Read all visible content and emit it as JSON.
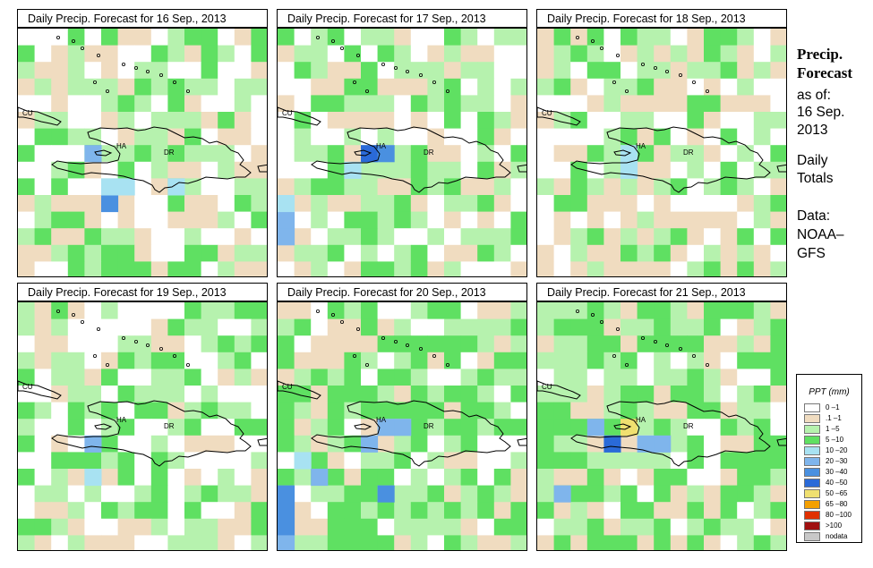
{
  "panels": [
    {
      "title": "Daily Precip. Forecast for  16 Sep., 2013",
      "seed": 16,
      "hot": [
        [
          5,
          10,
          "#4a90e0"
        ],
        [
          6,
          9,
          "#a8e2f2"
        ],
        [
          4,
          7,
          "#7fb5ec"
        ],
        [
          9,
          9,
          "#a8e2f2"
        ],
        [
          5,
          9,
          "#a8e2f2"
        ]
      ]
    },
    {
      "title": "Daily Precip. Forecast for  17 Sep., 2013",
      "seed": 17,
      "hot": [
        [
          5,
          7,
          "#2a6ad8"
        ],
        [
          6,
          7,
          "#4a90e0"
        ],
        [
          0,
          11,
          "#7fb5ec"
        ],
        [
          0,
          12,
          "#7fb5ec"
        ],
        [
          0,
          10,
          "#a8e2f2"
        ],
        [
          4,
          8,
          "#a8e2f2"
        ]
      ]
    },
    {
      "title": "Daily Precip. Forecast for  18 Sep., 2013",
      "seed": 18,
      "hot": [
        [
          5,
          8,
          "#a8e2f2"
        ],
        [
          5,
          7,
          "#a8e2f2"
        ]
      ]
    },
    {
      "title": "Daily Precip. Forecast for  19 Sep., 2013",
      "seed": 19,
      "hot": [
        [
          4,
          8,
          "#7fb5ec"
        ],
        [
          4,
          10,
          "#a8e2f2"
        ]
      ]
    },
    {
      "title": "Daily Precip. Forecast for  20 Sep., 2013",
      "seed": 20,
      "hot": [
        [
          6,
          11,
          "#4a90e0"
        ],
        [
          0,
          11,
          "#4a90e0"
        ],
        [
          0,
          12,
          "#4a90e0"
        ],
        [
          0,
          13,
          "#4a90e0"
        ],
        [
          0,
          14,
          "#7fb5ec"
        ],
        [
          6,
          7,
          "#7fb5ec"
        ],
        [
          7,
          7,
          "#7fb5ec"
        ],
        [
          5,
          8,
          "#7fb5ec"
        ],
        [
          1,
          9,
          "#a8e2f2"
        ],
        [
          2,
          10,
          "#7fb5ec"
        ]
      ]
    },
    {
      "title": "Daily Precip. Forecast for  21 Sep., 2013",
      "seed": 21,
      "hot": [
        [
          5,
          7,
          "#f0e070"
        ],
        [
          4,
          8,
          "#2a6ad8"
        ],
        [
          6,
          8,
          "#7fb5ec"
        ],
        [
          7,
          8,
          "#7fb5ec"
        ],
        [
          1,
          11,
          "#7fb5ec"
        ],
        [
          3,
          7,
          "#7fb5ec"
        ]
      ]
    }
  ],
  "labels": {
    "cu": "CU",
    "ha": "HA",
    "dr": "DR"
  },
  "side": {
    "l1": "Precip.",
    "l2": "Forecast",
    "l3": "as of:",
    "l4": "16 Sep.",
    "l5": "2013",
    "l6": "Daily",
    "l7": "Totals",
    "l8": "Data:",
    "l9": "NOAA–",
    "l10": "GFS"
  },
  "legend": {
    "title": "PPT (mm)",
    "items": [
      {
        "label": "0 –1",
        "color": "#ffffff"
      },
      {
        "label": ".1 –1",
        "color": "#f0dcc0"
      },
      {
        "label": "1 –5",
        "color": "#b6f2ae"
      },
      {
        "label": "5 –10",
        "color": "#5fe062"
      },
      {
        "label": "10 –20",
        "color": "#a8e2f2"
      },
      {
        "label": "20 –30",
        "color": "#7fb5ec"
      },
      {
        "label": "30 –40",
        "color": "#4a90e0"
      },
      {
        "label": "40 –50",
        "color": "#2a6ad8"
      },
      {
        "label": "50 –65",
        "color": "#f0e070"
      },
      {
        "label": "65 –80",
        "color": "#f5a000"
      },
      {
        "label": "80 –100",
        "color": "#e03000"
      },
      {
        "label": ">100",
        "color": "#a01010"
      },
      {
        "label": "nodata",
        "color": "#c8c8c8"
      }
    ]
  }
}
